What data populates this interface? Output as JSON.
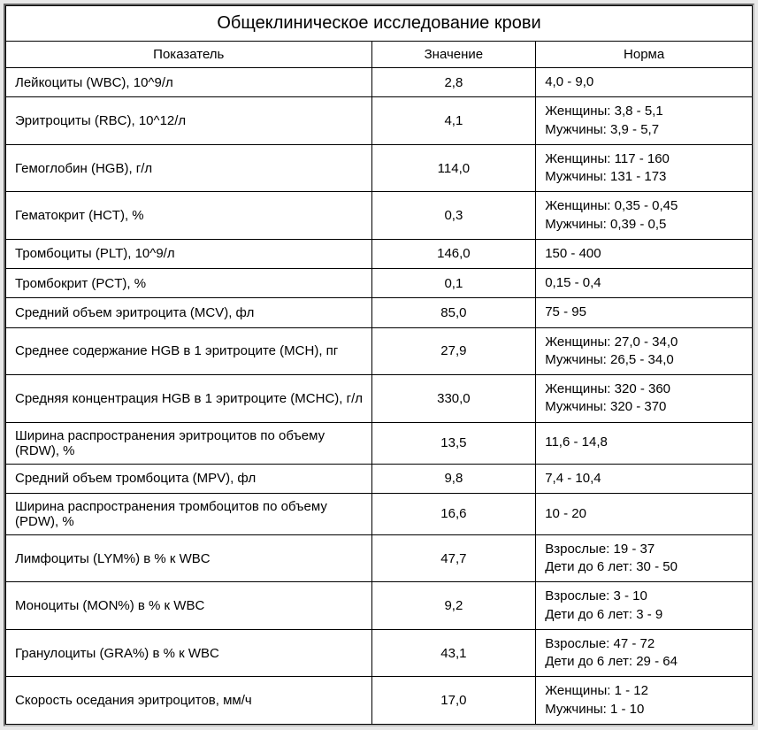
{
  "title": "Общеклиническое исследование крови",
  "headers": {
    "param": "Показатель",
    "value": "Значение",
    "norm": "Норма"
  },
  "rows": [
    {
      "param": "Лейкоциты (WBC), 10^9/л",
      "value": "2,8",
      "norm": [
        "4,0 - 9,0"
      ]
    },
    {
      "param": "Эритроциты (RBC), 10^12/л",
      "value": "4,1",
      "norm": [
        "Женщины: 3,8 - 5,1",
        "Мужчины: 3,9 - 5,7"
      ]
    },
    {
      "param": "Гемоглобин (HGB), г/л",
      "value": "114,0",
      "norm": [
        "Женщины: 117 - 160",
        "Мужчины: 131 - 173"
      ]
    },
    {
      "param": "Гематокрит (HCT), %",
      "value": "0,3",
      "norm": [
        "Женщины: 0,35 - 0,45",
        "Мужчины: 0,39 - 0,5"
      ]
    },
    {
      "param": "Тромбоциты (PLT), 10^9/л",
      "value": "146,0",
      "norm": [
        "150 - 400"
      ]
    },
    {
      "param": "Тромбокрит (PCT), %",
      "value": "0,1",
      "norm": [
        "0,15 - 0,4"
      ]
    },
    {
      "param": "Средний объем эритроцита (MCV), фл",
      "value": "85,0",
      "norm": [
        "75 - 95"
      ]
    },
    {
      "param": "Среднее содержание HGB в 1 эритроците (MCH), пг",
      "value": "27,9",
      "norm": [
        "Женщины: 27,0 - 34,0",
        "Мужчины: 26,5 - 34,0"
      ]
    },
    {
      "param": "Средняя концентрация HGB в 1 эритроците (MCHC), г/л",
      "value": "330,0",
      "norm": [
        "Женщины: 320 - 360",
        "Мужчины: 320 - 370"
      ]
    },
    {
      "param": "Ширина распространения эритроцитов по объему (RDW), %",
      "value": "13,5",
      "norm": [
        "11,6 - 14,8"
      ]
    },
    {
      "param": "Средний объем тромбоцита (MPV), фл",
      "value": "9,8",
      "norm": [
        "7,4 - 10,4"
      ]
    },
    {
      "param": "Ширина распространения тромбоцитов по объему (PDW), %",
      "value": "16,6",
      "norm": [
        "10 - 20"
      ]
    },
    {
      "param": "Лимфоциты (LYM%) в % к WBC",
      "value": "47,7",
      "norm": [
        "Взрослые: 19 - 37",
        "Дети до 6 лет: 30 - 50"
      ]
    },
    {
      "param": "Моноциты (MON%) в % к WBC",
      "value": "9,2",
      "norm": [
        "Взрослые: 3 - 10",
        "Дети до 6 лет: 3 - 9"
      ]
    },
    {
      "param": "Гранулоциты (GRA%) в % к WBC",
      "value": "43,1",
      "norm": [
        "Взрослые: 47 - 72",
        "Дети до 6 лет: 29 - 64"
      ]
    },
    {
      "param": "Скорость оседания эритроцитов, мм/ч",
      "value": "17,0",
      "norm": [
        "Женщины: 1 - 12",
        "Мужчины: 1 - 10"
      ]
    }
  ],
  "style": {
    "background": "#ffffff",
    "border_color": "#000000",
    "title_fontsize": 20,
    "cell_fontsize": 15,
    "font_family": "Arial",
    "col_widths_pct": [
      49,
      22,
      29
    ]
  }
}
